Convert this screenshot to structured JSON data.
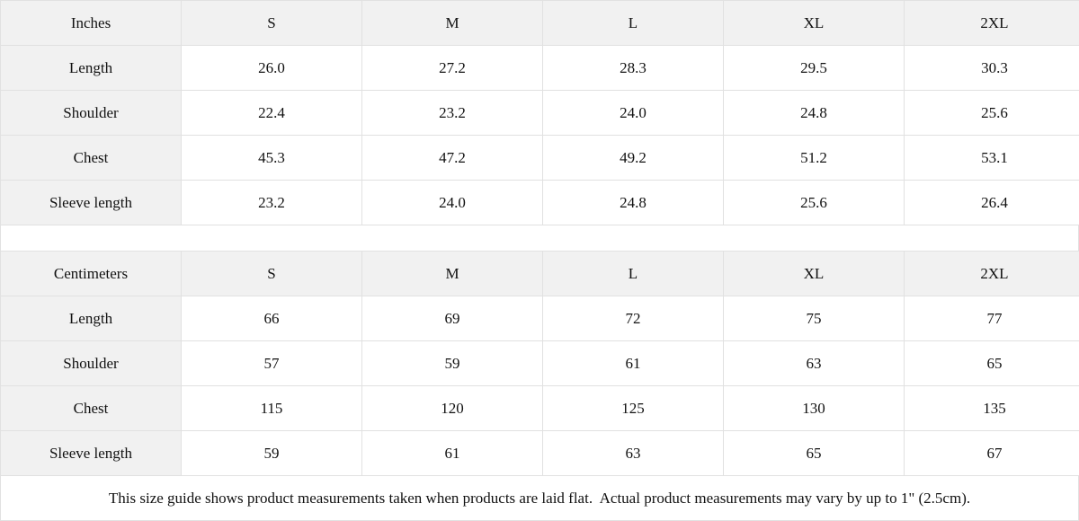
{
  "colors": {
    "header_cell_bg": "#f1f1f1",
    "grid_border": "#e1e1e1",
    "cell_bg": "#ffffff",
    "text": "#111111"
  },
  "tables": [
    {
      "id": "inches",
      "unit_label": "Inches",
      "size_headers": [
        "S",
        "M",
        "L",
        "XL",
        "2XL"
      ],
      "rows": [
        {
          "label": "Length",
          "values": [
            "26.0",
            "27.2",
            "28.3",
            "29.5",
            "30.3"
          ]
        },
        {
          "label": "Shoulder",
          "values": [
            "22.4",
            "23.2",
            "24.0",
            "24.8",
            "25.6"
          ]
        },
        {
          "label": "Chest",
          "values": [
            "45.3",
            "47.2",
            "49.2",
            "51.2",
            "53.1"
          ]
        },
        {
          "label": "Sleeve length",
          "values": [
            "23.2",
            "24.0",
            "24.8",
            "25.6",
            "26.4"
          ]
        }
      ]
    },
    {
      "id": "centimeters",
      "unit_label": "Centimeters",
      "size_headers": [
        "S",
        "M",
        "L",
        "XL",
        "2XL"
      ],
      "rows": [
        {
          "label": "Length",
          "values": [
            "66",
            "69",
            "72",
            "75",
            "77"
          ]
        },
        {
          "label": "Shoulder",
          "values": [
            "57",
            "59",
            "61",
            "63",
            "65"
          ]
        },
        {
          "label": "Chest",
          "values": [
            "115",
            "120",
            "125",
            "130",
            "135"
          ]
        },
        {
          "label": "Sleeve length",
          "values": [
            "59",
            "61",
            "63",
            "65",
            "67"
          ]
        }
      ]
    }
  ],
  "footer": {
    "note": "This size guide shows product measurements taken when products are laid flat.  Actual product measurements may vary by up to 1\" (2.5cm)."
  }
}
